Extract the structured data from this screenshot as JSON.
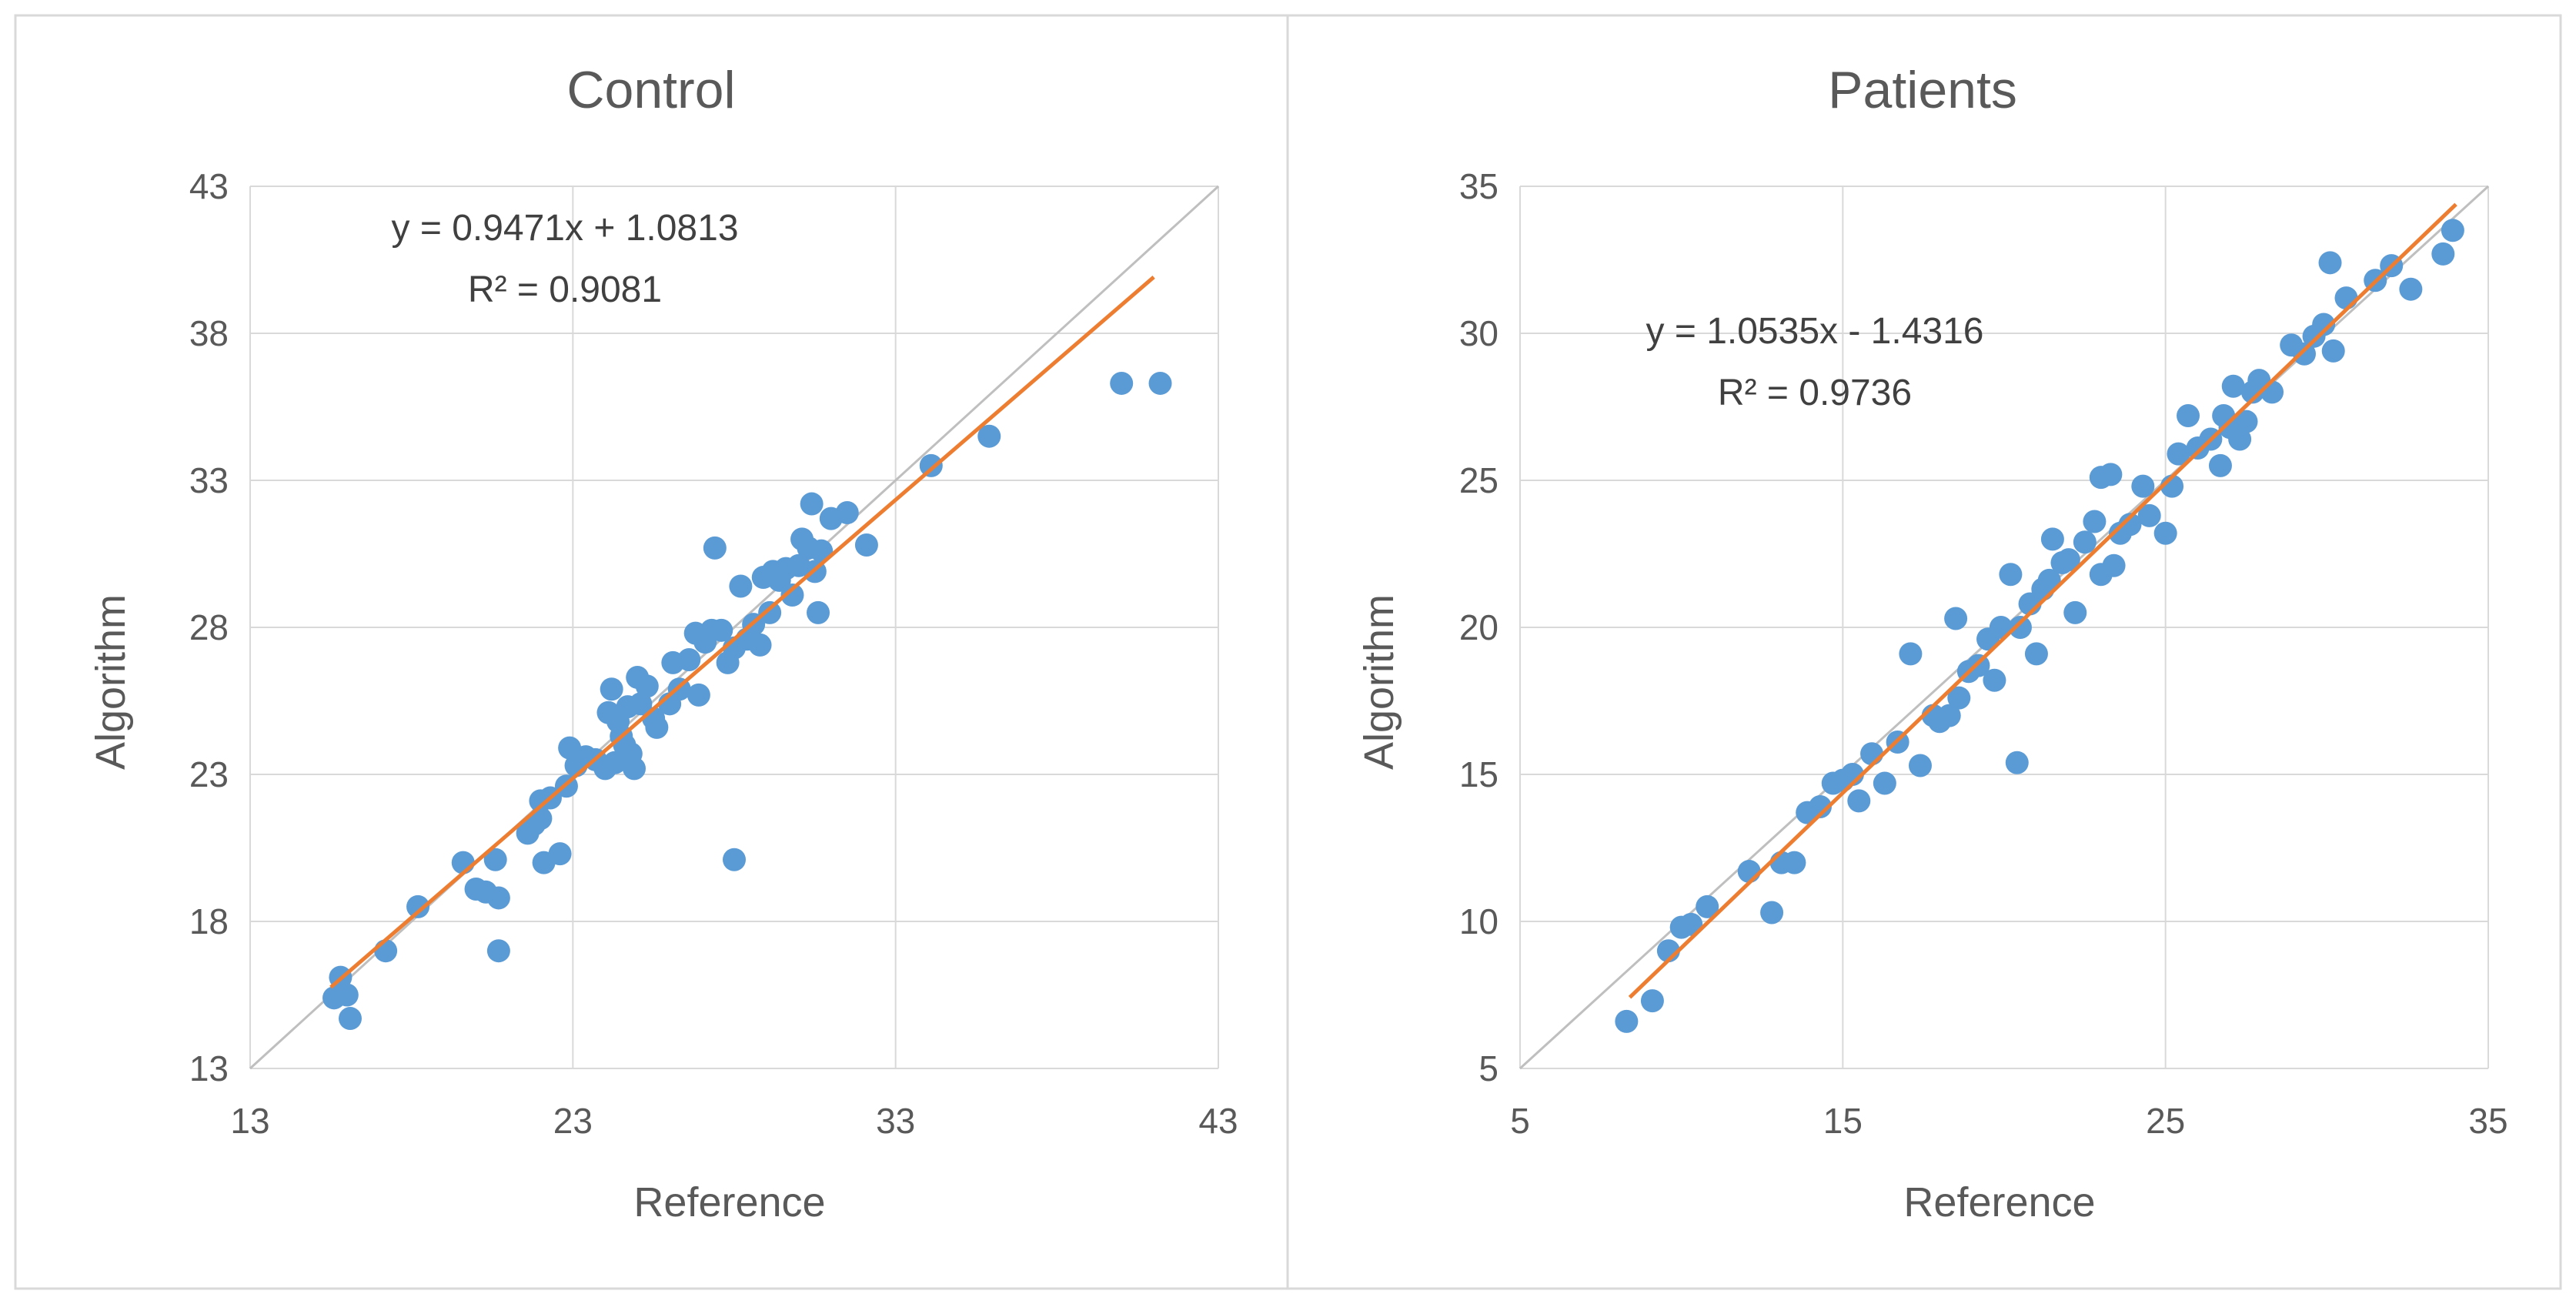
{
  "chart_data": [
    {
      "type": "scatter",
      "title": "Control",
      "xlabel": "Reference",
      "ylabel": "Algorithm",
      "xlim": [
        13,
        43
      ],
      "ylim": [
        13,
        43
      ],
      "xticks": [
        "13",
        "23",
        "33",
        "43"
      ],
      "yticks": [
        "13",
        "18",
        "23",
        "28",
        "33",
        "38",
        "43"
      ],
      "grid": true,
      "identity_line": true,
      "trendline": {
        "slope": 0.9471,
        "intercept": 1.0813,
        "x_range": [
          15.5,
          41
        ],
        "equation": "y = 0.9471x + 1.0813",
        "r2_label": "R² = 0.9081"
      },
      "colors": {
        "points": "#5b9bd5",
        "trend": "#ed7d31",
        "identity": "#bfbfbf",
        "grid": "#d9d9d9"
      },
      "points": [
        [
          15.6,
          15.4
        ],
        [
          15.8,
          16.1
        ],
        [
          16.0,
          15.5
        ],
        [
          16.1,
          14.7
        ],
        [
          17.2,
          17.0
        ],
        [
          18.2,
          18.5
        ],
        [
          19.6,
          20.0
        ],
        [
          20.0,
          19.1
        ],
        [
          20.3,
          19.0
        ],
        [
          20.6,
          20.1
        ],
        [
          20.7,
          18.8
        ],
        [
          20.7,
          17.0
        ],
        [
          21.6,
          21.0
        ],
        [
          21.8,
          21.3
        ],
        [
          22.0,
          21.5
        ],
        [
          22.0,
          22.1
        ],
        [
          22.3,
          22.2
        ],
        [
          22.1,
          20.0
        ],
        [
          22.6,
          20.3
        ],
        [
          22.8,
          22.6
        ],
        [
          22.9,
          23.9
        ],
        [
          23.1,
          23.3
        ],
        [
          23.4,
          23.6
        ],
        [
          23.7,
          23.5
        ],
        [
          24.0,
          23.2
        ],
        [
          24.1,
          25.1
        ],
        [
          24.2,
          25.9
        ],
        [
          24.3,
          23.4
        ],
        [
          24.4,
          24.8
        ],
        [
          24.5,
          24.3
        ],
        [
          24.6,
          24.0
        ],
        [
          24.7,
          25.3
        ],
        [
          24.8,
          23.7
        ],
        [
          24.9,
          23.2
        ],
        [
          25.0,
          26.3
        ],
        [
          25.1,
          25.4
        ],
        [
          25.3,
          26.0
        ],
        [
          25.5,
          24.9
        ],
        [
          25.6,
          24.6
        ],
        [
          26.0,
          25.4
        ],
        [
          26.1,
          26.8
        ],
        [
          26.3,
          25.9
        ],
        [
          26.6,
          26.9
        ],
        [
          26.8,
          27.8
        ],
        [
          26.9,
          25.7
        ],
        [
          27.1,
          27.5
        ],
        [
          27.3,
          27.9
        ],
        [
          27.4,
          30.7
        ],
        [
          27.6,
          27.9
        ],
        [
          27.8,
          26.8
        ],
        [
          28.0,
          27.3
        ],
        [
          28.0,
          20.1
        ],
        [
          28.2,
          29.4
        ],
        [
          28.4,
          27.6
        ],
        [
          28.6,
          28.1
        ],
        [
          28.8,
          27.4
        ],
        [
          28.9,
          29.7
        ],
        [
          29.1,
          28.5
        ],
        [
          29.2,
          29.9
        ],
        [
          29.4,
          29.6
        ],
        [
          29.6,
          30.0
        ],
        [
          29.8,
          29.1
        ],
        [
          30.0,
          30.1
        ],
        [
          30.1,
          31.0
        ],
        [
          30.3,
          30.7
        ],
        [
          30.4,
          32.2
        ],
        [
          30.5,
          29.9
        ],
        [
          30.6,
          28.5
        ],
        [
          30.7,
          30.6
        ],
        [
          31.0,
          31.7
        ],
        [
          31.5,
          31.9
        ],
        [
          32.1,
          30.8
        ],
        [
          34.1,
          33.5
        ],
        [
          35.9,
          34.5
        ],
        [
          40.0,
          36.3
        ],
        [
          41.2,
          36.3
        ]
      ]
    },
    {
      "type": "scatter",
      "title": "Patients",
      "xlabel": "Reference",
      "ylabel": "Algorithm",
      "xlim": [
        5,
        35
      ],
      "ylim": [
        5,
        35
      ],
      "xticks": [
        "5",
        "15",
        "25",
        "35"
      ],
      "yticks": [
        "5",
        "10",
        "15",
        "20",
        "25",
        "30",
        "35"
      ],
      "grid": true,
      "identity_line": true,
      "trendline": {
        "slope": 1.0535,
        "intercept": -1.4316,
        "x_range": [
          8.4,
          34
        ],
        "equation": "y = 1.0535x - 1.4316",
        "r2_label": "R² = 0.9736"
      },
      "colors": {
        "points": "#5b9bd5",
        "trend": "#ed7d31",
        "identity": "#bfbfbf",
        "grid": "#d9d9d9"
      },
      "points": [
        [
          8.3,
          6.6
        ],
        [
          9.1,
          7.3
        ],
        [
          9.6,
          9.0
        ],
        [
          10.0,
          9.8
        ],
        [
          10.3,
          9.9
        ],
        [
          10.8,
          10.5
        ],
        [
          12.1,
          11.7
        ],
        [
          12.8,
          10.3
        ],
        [
          13.1,
          12.0
        ],
        [
          13.5,
          12.0
        ],
        [
          13.9,
          13.7
        ],
        [
          14.3,
          13.9
        ],
        [
          14.7,
          14.7
        ],
        [
          15.0,
          14.8
        ],
        [
          15.3,
          15.0
        ],
        [
          15.5,
          14.1
        ],
        [
          15.9,
          15.7
        ],
        [
          16.3,
          14.7
        ],
        [
          16.7,
          16.1
        ],
        [
          17.1,
          19.1
        ],
        [
          17.4,
          15.3
        ],
        [
          17.8,
          17.0
        ],
        [
          18.0,
          16.8
        ],
        [
          18.3,
          17.0
        ],
        [
          18.5,
          20.3
        ],
        [
          18.6,
          17.6
        ],
        [
          18.9,
          18.5
        ],
        [
          19.2,
          18.7
        ],
        [
          19.5,
          19.6
        ],
        [
          19.7,
          18.2
        ],
        [
          19.9,
          20.0
        ],
        [
          20.2,
          21.8
        ],
        [
          20.4,
          15.4
        ],
        [
          20.5,
          20.0
        ],
        [
          20.8,
          20.8
        ],
        [
          21.0,
          19.1
        ],
        [
          21.2,
          21.3
        ],
        [
          21.4,
          21.6
        ],
        [
          21.5,
          23.0
        ],
        [
          21.8,
          22.2
        ],
        [
          22.0,
          22.3
        ],
        [
          22.2,
          20.5
        ],
        [
          22.5,
          22.9
        ],
        [
          22.8,
          23.6
        ],
        [
          23.0,
          21.8
        ],
        [
          23.0,
          25.1
        ],
        [
          23.3,
          25.2
        ],
        [
          23.4,
          22.1
        ],
        [
          23.6,
          23.2
        ],
        [
          23.9,
          23.5
        ],
        [
          24.3,
          24.8
        ],
        [
          24.5,
          23.8
        ],
        [
          25.0,
          23.2
        ],
        [
          25.2,
          24.8
        ],
        [
          25.4,
          25.9
        ],
        [
          25.7,
          27.2
        ],
        [
          26.0,
          26.1
        ],
        [
          26.4,
          26.4
        ],
        [
          26.7,
          25.5
        ],
        [
          26.8,
          27.2
        ],
        [
          27.0,
          26.8
        ],
        [
          27.1,
          28.2
        ],
        [
          27.3,
          26.4
        ],
        [
          27.5,
          27.0
        ],
        [
          27.7,
          28.0
        ],
        [
          27.9,
          28.4
        ],
        [
          28.3,
          28.0
        ],
        [
          28.9,
          29.6
        ],
        [
          29.3,
          29.3
        ],
        [
          29.6,
          29.9
        ],
        [
          29.9,
          30.3
        ],
        [
          30.1,
          32.4
        ],
        [
          30.2,
          29.4
        ],
        [
          30.6,
          31.2
        ],
        [
          31.5,
          31.8
        ],
        [
          32.0,
          32.3
        ],
        [
          32.6,
          31.5
        ],
        [
          33.6,
          32.7
        ],
        [
          33.9,
          33.5
        ]
      ]
    }
  ]
}
